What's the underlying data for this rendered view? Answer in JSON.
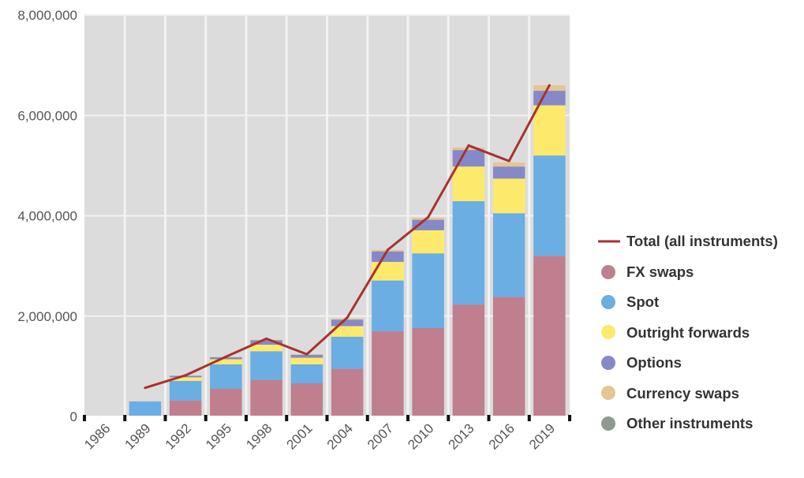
{
  "chart_data": {
    "type": "bar",
    "stacked": true,
    "categories": [
      "1986",
      "1989",
      "1992",
      "1995",
      "1998",
      "2001",
      "2004",
      "2007",
      "2010",
      "2013",
      "2016",
      "2019"
    ],
    "series": [
      {
        "name": "FX swaps",
        "color": "#c07f8e",
        "values": [
          0,
          0,
          320000,
          550000,
          730000,
          660000,
          950000,
          1700000,
          1760000,
          2230000,
          2380000,
          3200000
        ]
      },
      {
        "name": "Spot",
        "color": "#6aaee3",
        "values": [
          0,
          300000,
          390000,
          490000,
          570000,
          380000,
          640000,
          1010000,
          1490000,
          2060000,
          1670000,
          2000000
        ]
      },
      {
        "name": "Outright forwards",
        "color": "#fde96c",
        "values": [
          0,
          0,
          70000,
          100000,
          130000,
          130000,
          210000,
          370000,
          460000,
          690000,
          690000,
          1000000
        ]
      },
      {
        "name": "Options",
        "color": "#8689c7",
        "values": [
          0,
          0,
          30000,
          40000,
          90000,
          60000,
          130000,
          210000,
          210000,
          330000,
          240000,
          290000
        ]
      },
      {
        "name": "Currency swaps",
        "color": "#e4c594",
        "values": [
          0,
          0,
          5000,
          5000,
          10000,
          10000,
          20000,
          30000,
          40000,
          50000,
          80000,
          110000
        ]
      },
      {
        "name": "Other instruments",
        "color": "#8e9a8e",
        "values": [
          0,
          0,
          0,
          0,
          0,
          0,
          0,
          0,
          0,
          0,
          0,
          0
        ]
      }
    ],
    "line": {
      "name": "Total (all instruments)",
      "color": "#a8322d",
      "values": [
        null,
        570000,
        820000,
        1190000,
        1550000,
        1240000,
        1970000,
        3320000,
        3970000,
        5400000,
        5090000,
        6600000
      ]
    },
    "yticks": [
      "0",
      "2,000,000",
      "4,000,000",
      "6,000,000",
      "8,000,000"
    ],
    "ylim": [
      0,
      8000000
    ],
    "xlabel": "",
    "ylabel": "",
    "grid": true,
    "legend_position": "right",
    "colors": {
      "plot_background": "#dcdcdc",
      "grid": "#f2f2f2",
      "tick_text": "#555555",
      "legend_text": "#333333"
    }
  }
}
